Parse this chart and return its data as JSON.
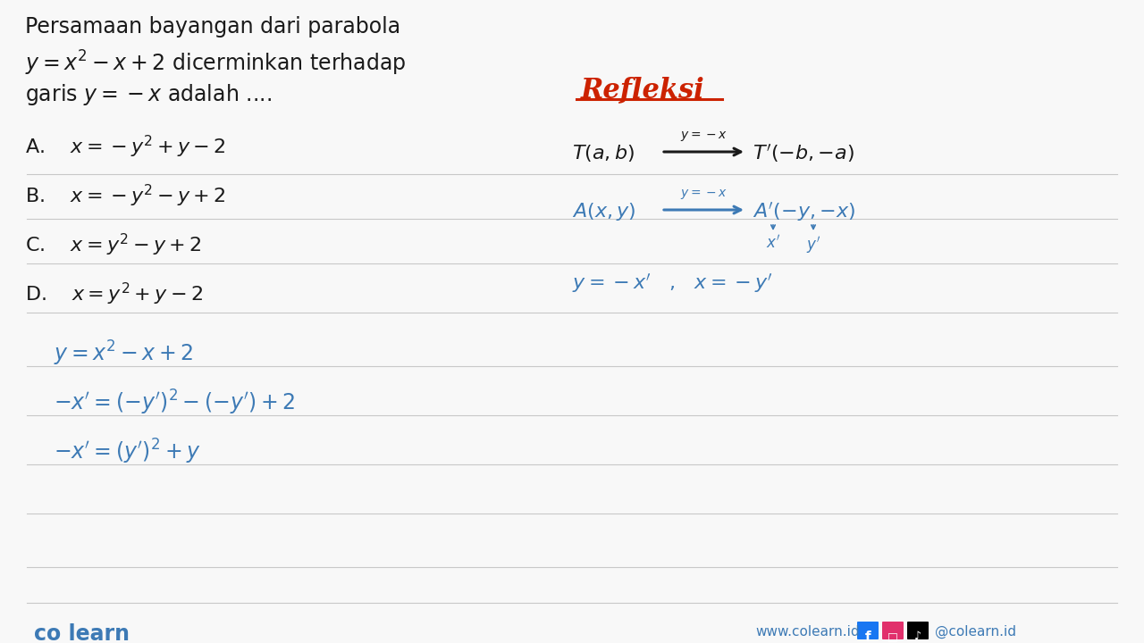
{
  "bg_color": "#f8f8f8",
  "line_color": "#c8c8c8",
  "black_text_color": "#1a1a1a",
  "blue_text_color": "#3d7ab5",
  "red_text_color": "#cc2200",
  "footer_left": "co learn",
  "footer_url": "www.colearn.id",
  "footer_social": "@colearn.id"
}
